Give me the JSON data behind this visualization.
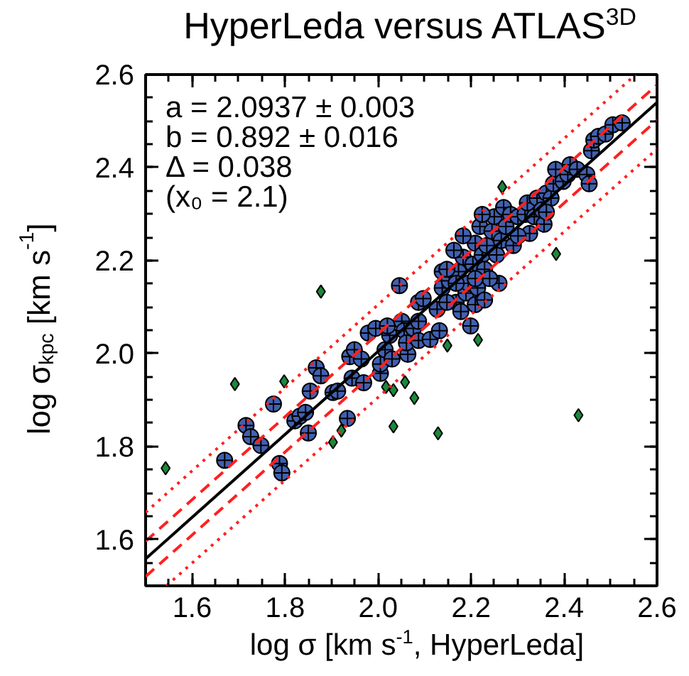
{
  "chart_data": {
    "type": "scatter",
    "title": "HyperLeda versus ATLAS$^{3D}$",
    "xlabel": "log σ [km s$^{-1}$, HyperLeda]",
    "ylabel": "log σ$_{kpc}$ [km s$^{-1}$]",
    "xlim": [
      1.5,
      2.6
    ],
    "ylim": [
      1.5,
      2.6
    ],
    "xticks": [
      1.6,
      1.8,
      {
        "value": 2.0,
        "label": "2.0"
      },
      2.2,
      2.4,
      2.6
    ],
    "yticks": [
      1.6,
      1.8,
      {
        "value": 2.0,
        "label": "2.0"
      },
      2.2,
      2.4,
      2.6
    ],
    "grid": false,
    "annotations": [
      "a = 2.0937 ± 0.003",
      "b = 0.892 ± 0.016",
      "Δ = 0.038",
      "(x₀ = 2.1)"
    ],
    "series": [
      {
        "marker": "circle",
        "color": "#4060b0",
        "x": [
          1.67,
          1.716,
          1.726,
          1.748,
          1.775,
          1.788,
          1.793,
          1.821,
          1.832,
          1.844,
          1.854,
          1.85,
          1.867,
          1.877,
          1.903,
          1.913,
          1.934,
          1.944,
          1.939,
          1.949,
          1.964,
          1.969,
          1.979,
          1.995,
          2.005,
          2.005,
          2.015,
          2.025,
          2.02,
          2.03,
          2.046,
          2.051,
          2.056,
          2.064,
          2.061,
          2.076,
          2.087,
          2.087,
          2.087,
          2.097,
          2.112,
          2.132,
          2.127,
          2.138,
          2.138,
          2.153,
          2.168,
          2.173,
          2.183,
          2.189,
          2.194,
          2.204,
          2.209,
          2.214,
          2.209,
          2.219,
          2.224,
          2.229,
          2.234,
          2.245,
          2.25,
          2.255,
          2.26,
          2.265,
          2.27,
          2.275,
          2.285,
          2.291,
          2.301,
          2.316,
          2.321,
          2.326,
          2.336,
          2.342,
          2.352,
          2.357,
          2.362,
          2.372,
          2.377,
          2.382,
          2.398,
          2.408,
          2.413,
          2.428,
          2.449,
          2.454,
          2.459,
          2.464,
          2.474,
          2.489,
          2.505,
          2.525,
          2.178,
          2.199,
          2.24,
          2.163,
          2.183,
          2.148,
          2.224,
          2.362,
          2.229,
          2.209,
          2.148,
          2.168,
          2.301
        ],
        "values": [
          1.77,
          1.845,
          1.821,
          1.802,
          1.891,
          1.763,
          1.743,
          1.855,
          1.865,
          1.873,
          1.919,
          1.829,
          1.969,
          1.952,
          1.916,
          1.919,
          1.86,
          1.947,
          1.993,
          2.008,
          1.988,
          1.937,
          2.044,
          2.054,
          1.957,
          1.977,
          2.008,
          2.039,
          2.059,
          1.988,
          2.146,
          2.069,
          2.049,
          1.998,
          2.023,
          2.054,
          2.069,
          2.11,
          2.028,
          2.118,
          2.03,
          2.049,
          2.095,
          2.141,
          2.176,
          2.156,
          2.11,
          2.176,
          2.207,
          2.13,
          2.151,
          2.192,
          2.105,
          2.141,
          2.237,
          2.273,
          2.212,
          2.181,
          2.232,
          2.263,
          2.294,
          2.212,
          2.151,
          2.243,
          2.314,
          2.273,
          2.299,
          2.232,
          2.294,
          2.299,
          2.324,
          2.258,
          2.294,
          2.334,
          2.309,
          2.278,
          2.345,
          2.334,
          2.365,
          2.396,
          2.37,
          2.385,
          2.406,
          2.396,
          2.385,
          2.365,
          2.436,
          2.459,
          2.467,
          2.472,
          2.492,
          2.496,
          2.09,
          2.059,
          2.161,
          2.222,
          2.253,
          2.11,
          2.299,
          2.304,
          2.115,
          2.161,
          2.181,
          2.151,
          2.253
        ]
      },
      {
        "marker": "diamond",
        "color": "#1a8a3a",
        "x": [
          1.543,
          1.692,
          1.798,
          1.877,
          1.903,
          1.921,
          2.017,
          2.033,
          2.033,
          2.058,
          2.078,
          2.129,
          2.149,
          2.215,
          2.267,
          2.383,
          2.431
        ],
        "values": [
          1.753,
          1.934,
          1.94,
          2.133,
          1.809,
          1.834,
          1.928,
          1.921,
          1.843,
          1.938,
          1.904,
          1.828,
          2.017,
          2.029,
          2.358,
          2.214,
          1.867
        ]
      },
      {
        "type": "line",
        "line_style": "solid",
        "color": "#000000",
        "x": [
          1.5,
          2.6
        ],
        "values": [
          1.558,
          2.54
        ]
      },
      {
        "type": "line",
        "line_style": "dashed",
        "color": "#ff2020",
        "x": [
          1.5,
          2.6
        ],
        "values": [
          1.596,
          2.578
        ]
      },
      {
        "type": "line",
        "line_style": "dashed",
        "color": "#ff2020",
        "x": [
          1.5,
          2.6
        ],
        "values": [
          1.52,
          2.502
        ]
      },
      {
        "type": "line",
        "line_style": "dotted",
        "color": "#ff2020",
        "x": [
          1.5,
          2.554
        ],
        "values": [
          1.658,
          2.6
        ]
      },
      {
        "type": "line",
        "line_style": "dotted",
        "color": "#ff2020",
        "x": [
          1.545,
          2.6
        ],
        "values": [
          1.5,
          2.44
        ]
      }
    ]
  }
}
